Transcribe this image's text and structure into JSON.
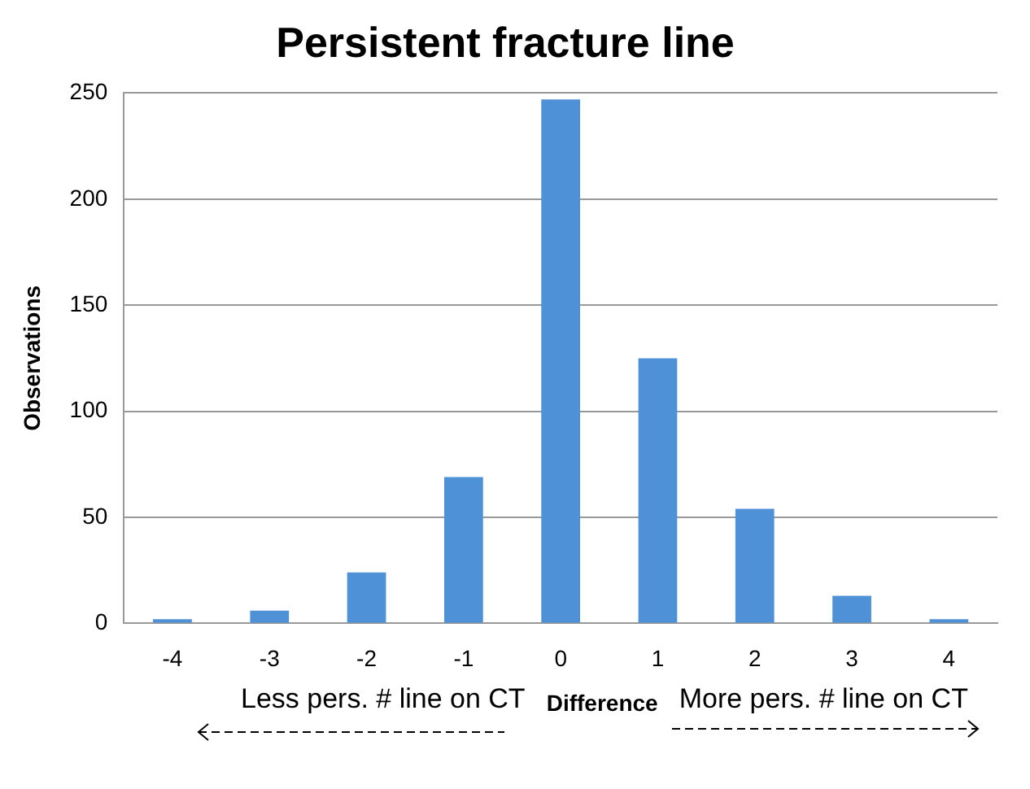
{
  "chart_data": {
    "type": "bar",
    "title": "Persistent fracture line",
    "xlabel": "Difference",
    "ylabel": "Observations",
    "categories": [
      "-4",
      "-3",
      "-2",
      "-1",
      "0",
      "1",
      "2",
      "3",
      "4"
    ],
    "values": [
      2,
      6,
      24,
      69,
      247,
      125,
      54,
      13,
      2
    ],
    "color": "#4f91d6",
    "ylim": [
      0,
      250
    ],
    "yticks": [
      0,
      50,
      100,
      150,
      200,
      250
    ],
    "grid": "y",
    "annotations": [
      "Less pers. # line on CT",
      "More pers. # line on CT"
    ]
  }
}
